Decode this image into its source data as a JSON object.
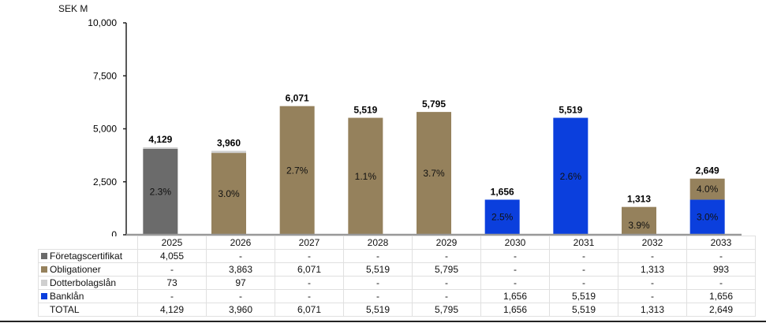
{
  "chart_data": {
    "type": "bar",
    "stacked": true,
    "ylabel": "SEK M",
    "ylim": [
      0,
      10000
    ],
    "yticks": [
      "0",
      "2,500",
      "5,000",
      "7,500",
      "10,000"
    ],
    "ytick_values": [
      0,
      2500,
      5000,
      7500,
      10000
    ],
    "categories": [
      "2025",
      "2026",
      "2027",
      "2028",
      "2029",
      "2030",
      "2031",
      "2032",
      "2033"
    ],
    "series": [
      {
        "name": "Företagscertifikat",
        "color": "#6b6b6b",
        "values": [
          4055,
          0,
          0,
          0,
          0,
          0,
          0,
          0,
          0
        ],
        "display": [
          "4,055",
          "-",
          "-",
          "-",
          "-",
          "-",
          "-",
          "-",
          "-"
        ]
      },
      {
        "name": "Obligationer",
        "color": "#95815c",
        "values": [
          0,
          3863,
          6071,
          5519,
          5795,
          0,
          0,
          1313,
          993
        ],
        "display": [
          "-",
          "3,863",
          "6,071",
          "5,519",
          "5,795",
          "-",
          "-",
          "1,313",
          "993"
        ]
      },
      {
        "name": "Dotterbolagslån",
        "color": "#cfcfcf",
        "values": [
          73,
          97,
          0,
          0,
          0,
          0,
          0,
          0,
          0
        ],
        "display": [
          "73",
          "97",
          "-",
          "-",
          "-",
          "-",
          "-",
          "-",
          "-"
        ]
      },
      {
        "name": "Banklån",
        "color": "#0b3fdd",
        "values": [
          0,
          0,
          0,
          0,
          0,
          1656,
          5519,
          0,
          1656
        ],
        "display": [
          "-",
          "-",
          "-",
          "-",
          "-",
          "1,656",
          "5,519",
          "-",
          "1,656"
        ]
      }
    ],
    "totals": [
      4129,
      3960,
      6071,
      5519,
      5795,
      1656,
      5519,
      1313,
      2649
    ],
    "totals_display": [
      "4,129",
      "3,960",
      "6,071",
      "5,519",
      "5,795",
      "1,656",
      "5,519",
      "1,313",
      "2,649"
    ],
    "total_label": "TOTAL",
    "rate_labels": [
      [
        {
          "series": "Företagscertifikat",
          "text": "2.3%"
        }
      ],
      [
        {
          "series": "Obligationer",
          "text": "3.0%"
        }
      ],
      [
        {
          "series": "Obligationer",
          "text": "2.7%"
        }
      ],
      [
        {
          "series": "Obligationer",
          "text": "1.1%"
        }
      ],
      [
        {
          "series": "Obligationer",
          "text": "3.7%"
        }
      ],
      [
        {
          "series": "Banklån",
          "text": "2.5%"
        }
      ],
      [
        {
          "series": "Banklån",
          "text": "2.6%"
        }
      ],
      [
        {
          "series": "Obligationer",
          "text": "3.9%"
        }
      ],
      [
        {
          "series": "Banklån",
          "text": "3.0%"
        },
        {
          "series": "Obligationer",
          "text": "4.0%"
        }
      ]
    ],
    "legend": "table-below"
  }
}
